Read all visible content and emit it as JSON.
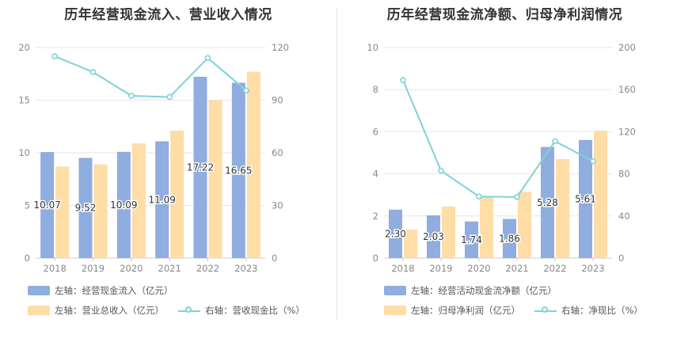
{
  "colors": {
    "bar1": "#8fadde",
    "bar2": "#ffdda6",
    "line": "#80d2d8",
    "grid": "#e6e6e6",
    "axis_text": "#888888"
  },
  "chart_data": [
    {
      "type": "bar",
      "title": "历年经营现金流入、营业收入情况",
      "categories": [
        "2018",
        "2019",
        "2020",
        "2021",
        "2022",
        "2023"
      ],
      "ylim_left": [
        0,
        20
      ],
      "yticks_left": [
        "0",
        "5",
        "10",
        "15",
        "20"
      ],
      "ylim_right": [
        0,
        120
      ],
      "yticks_right": [
        "0",
        "30",
        "60",
        "90",
        "120"
      ],
      "series": [
        {
          "name": "左轴：经营现金流入（亿元）",
          "axis": "left",
          "kind": "bar",
          "values": [
            10.07,
            9.52,
            10.09,
            11.09,
            17.22,
            16.65
          ],
          "labels": [
            "10.07",
            "9.52",
            "10.09",
            "11.09",
            "17.22",
            "16.65"
          ]
        },
        {
          "name": "左轴：营业总收入（亿元）",
          "axis": "left",
          "kind": "bar",
          "values": [
            8.7,
            8.9,
            10.9,
            12.1,
            15.0,
            17.7
          ]
        },
        {
          "name": "右轴：营收现金比（%）",
          "axis": "right",
          "kind": "line",
          "values": [
            115,
            106,
            92.5,
            91.8,
            114,
            95.5
          ]
        }
      ]
    },
    {
      "type": "bar",
      "title": "历年经营现金流净额、归母净利润情况",
      "categories": [
        "2018",
        "2019",
        "2020",
        "2021",
        "2022",
        "2023"
      ],
      "ylim_left": [
        0,
        10
      ],
      "yticks_left": [
        "0",
        "2",
        "4",
        "6",
        "8",
        "10"
      ],
      "ylim_right": [
        0,
        200
      ],
      "yticks_right": [
        "0",
        "40",
        "80",
        "120",
        "160",
        "200"
      ],
      "series": [
        {
          "name": "左轴：经营活动现金流净额（亿元）",
          "axis": "left",
          "kind": "bar",
          "values": [
            2.3,
            2.03,
            1.74,
            1.86,
            5.28,
            5.61
          ],
          "labels": [
            "2.30",
            "2.03",
            "1.74",
            "1.86",
            "5.28",
            "5.61"
          ]
        },
        {
          "name": "左轴：归母净利润（亿元）",
          "axis": "left",
          "kind": "bar",
          "values": [
            1.35,
            2.45,
            2.95,
            3.15,
            4.7,
            6.05
          ]
        },
        {
          "name": "右轴：净现比（%）",
          "axis": "right",
          "kind": "line",
          "values": [
            169,
            83,
            58.5,
            58,
            111,
            92
          ]
        }
      ]
    }
  ]
}
